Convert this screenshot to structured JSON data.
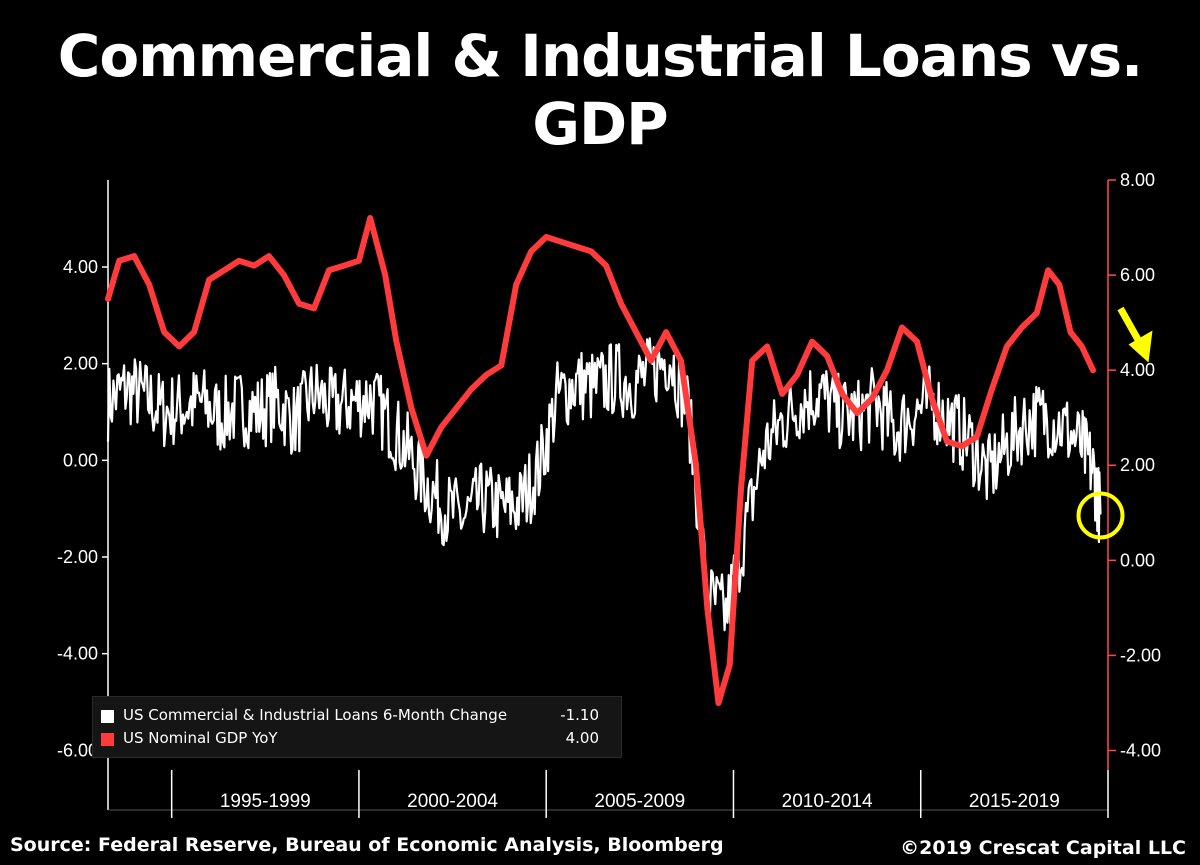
{
  "title": "Commercial & Industrial Loans vs. GDP",
  "source": "Source: Federal Reserve, Bureau of Economic Analysis, Bloomberg",
  "copyright": "©2019 Crescat Capital LLC",
  "colors": {
    "background": "#000000",
    "loans_series": "#ffffff",
    "gdp_series": "#ff3b3b",
    "right_axis": "#ff4a4a",
    "annotation": "#ffff00",
    "legend_bg": "#151515"
  },
  "chart_data": {
    "type": "line",
    "title": "Commercial & Industrial Loans vs. GDP",
    "x_range": [
      1993.3,
      2020.0
    ],
    "x_categories": [
      "1995-1999",
      "2000-2004",
      "2005-2009",
      "2010-2014",
      "2015-2019"
    ],
    "category_boundaries": [
      1995,
      2000,
      2005,
      2010,
      2015,
      2020
    ],
    "grid": false,
    "legend_position": "bottom-left",
    "axes": {
      "left": {
        "ylim": [
          -6.2,
          5.8
        ],
        "ticks": [
          "4.00",
          "2.00",
          "0.00",
          "-2.00",
          "-4.00",
          "-6.00"
        ],
        "tick_values": [
          4,
          2,
          0,
          -2,
          -4,
          -6
        ]
      },
      "right": {
        "ylim": [
          -4.2,
          8.0
        ],
        "ticks": [
          "8.00",
          "6.00",
          "4.00",
          "2.00",
          "0.00",
          "-2.00",
          "-4.00"
        ],
        "tick_values": [
          8,
          6,
          4,
          2,
          0,
          -2,
          -4
        ],
        "color": "#ff4a4a"
      }
    },
    "legend": [
      {
        "label": "US Commercial & Industrial Loans 6-Month Change",
        "value": "-1.10",
        "color": "#ffffff"
      },
      {
        "label": "US Nominal GDP YoY",
        "value": "4.00",
        "color": "#ff3b3b"
      }
    ],
    "series": [
      {
        "name": "US Commercial & Industrial Loans 6-Month Change",
        "axis": "left",
        "color": "#ffffff",
        "style": "noisy",
        "x": [
          1993.3,
          1993.8,
          1994.3,
          1994.8,
          1995.3,
          1995.8,
          1996.3,
          1996.8,
          1997.3,
          1997.8,
          1998.3,
          1998.8,
          1999.3,
          1999.8,
          2000.3,
          2000.8,
          2001.3,
          2001.8,
          2002.3,
          2002.8,
          2003.3,
          2003.8,
          2004.3,
          2004.8,
          2005.3,
          2005.8,
          2006.3,
          2006.8,
          2007.3,
          2007.8,
          2008.3,
          2008.8,
          2009.3,
          2009.8,
          2010.3,
          2010.8,
          2011.3,
          2011.8,
          2012.3,
          2012.8,
          2013.3,
          2013.8,
          2014.3,
          2014.8,
          2015.3,
          2015.8,
          2016.3,
          2016.8,
          2017.3,
          2017.8,
          2018.3,
          2018.8,
          2019.3,
          2019.6,
          2019.8
        ],
        "y": [
          1.2,
          1.5,
          1.3,
          1.0,
          1.1,
          1.2,
          0.9,
          1.1,
          1.0,
          1.2,
          0.8,
          1.4,
          1.1,
          1.2,
          1.3,
          0.8,
          0.2,
          -0.5,
          -1.0,
          -1.2,
          -0.8,
          -1.0,
          -0.9,
          -0.2,
          1.3,
          1.6,
          1.5,
          1.7,
          1.6,
          1.8,
          2.2,
          1.0,
          -2.8,
          -3.2,
          -1.5,
          0.2,
          0.8,
          1.2,
          1.4,
          1.0,
          0.9,
          1.2,
          0.6,
          1.0,
          1.2,
          0.8,
          0.4,
          -0.3,
          0.3,
          0.8,
          0.9,
          0.7,
          0.3,
          -0.2,
          -1.1
        ]
      },
      {
        "name": "US Nominal GDP YoY",
        "axis": "right",
        "color": "#ff3b3b",
        "style": "smooth",
        "x": [
          1993.3,
          1993.6,
          1994.0,
          1994.4,
          1994.8,
          1995.2,
          1995.6,
          1996.0,
          1996.4,
          1996.8,
          1997.2,
          1997.6,
          1998.0,
          1998.4,
          1998.8,
          1999.2,
          1999.6,
          2000.0,
          2000.3,
          2000.7,
          2001.0,
          2001.4,
          2001.8,
          2002.2,
          2002.6,
          2003.0,
          2003.4,
          2003.8,
          2004.2,
          2004.6,
          2005.0,
          2005.4,
          2005.8,
          2006.2,
          2006.6,
          2007.0,
          2007.4,
          2007.8,
          2008.2,
          2008.6,
          2009.0,
          2009.3,
          2009.6,
          2009.9,
          2010.2,
          2010.5,
          2010.9,
          2011.3,
          2011.7,
          2012.1,
          2012.5,
          2012.9,
          2013.3,
          2013.7,
          2014.1,
          2014.5,
          2014.9,
          2015.3,
          2015.7,
          2016.1,
          2016.5,
          2016.9,
          2017.3,
          2017.7,
          2018.1,
          2018.4,
          2018.7,
          2019.0,
          2019.3,
          2019.6
        ],
        "y": [
          5.5,
          6.3,
          6.4,
          5.8,
          4.8,
          4.5,
          4.8,
          5.9,
          6.1,
          6.3,
          6.2,
          6.4,
          6.0,
          5.4,
          5.3,
          6.1,
          6.2,
          6.3,
          7.2,
          6.0,
          4.6,
          3.2,
          2.2,
          2.8,
          3.2,
          3.6,
          3.9,
          4.1,
          5.8,
          6.5,
          6.8,
          6.7,
          6.6,
          6.5,
          6.2,
          5.4,
          4.8,
          4.2,
          4.8,
          4.2,
          2.0,
          -1.0,
          -3.0,
          -2.2,
          1.5,
          4.2,
          4.5,
          3.5,
          3.9,
          4.6,
          4.3,
          3.5,
          3.1,
          3.4,
          4.0,
          4.9,
          4.6,
          3.4,
          2.5,
          2.4,
          2.6,
          3.6,
          4.5,
          4.9,
          5.2,
          6.1,
          5.8,
          4.8,
          4.5,
          4.0
        ]
      }
    ],
    "annotations": [
      {
        "type": "arrow",
        "color": "#ffff00",
        "meaning": "downward trend"
      },
      {
        "type": "circle",
        "color": "#ffff00",
        "meaning": "latest loans reading"
      }
    ]
  }
}
